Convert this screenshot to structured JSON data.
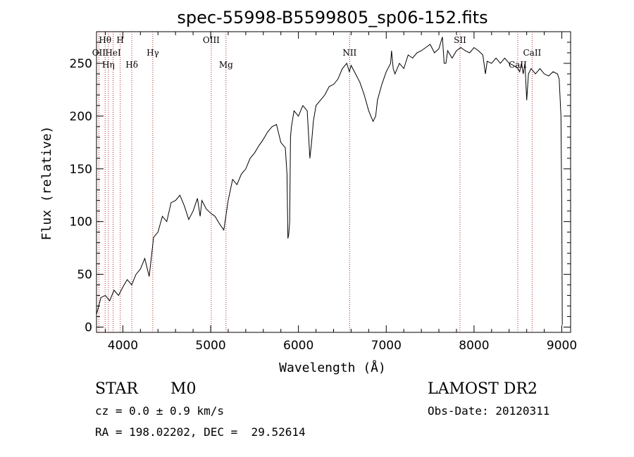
{
  "chart_data": {
    "type": "line",
    "title": "spec-55998-B5599805_sp06-152.fits",
    "xlabel": "Wavelength (Å)",
    "ylabel": "Flux (relative)",
    "xlim": [
      3700,
      9100
    ],
    "ylim": [
      -5,
      280
    ],
    "xticks": [
      4000,
      5000,
      6000,
      7000,
      8000,
      9000
    ],
    "yticks": [
      0,
      50,
      100,
      150,
      200,
      250
    ],
    "grid": false,
    "series": [
      {
        "x": [
          3700,
          3750,
          3800,
          3850,
          3900,
          3950,
          4000,
          4050,
          4100,
          4150,
          4200,
          4250,
          4300,
          4350,
          4400,
          4450,
          4500,
          4550,
          4600,
          4650,
          4700,
          4750,
          4800,
          4850,
          4880,
          4900,
          4950,
          5000,
          5050,
          5100,
          5150,
          5200,
          5250,
          5300,
          5350,
          5400,
          5450,
          5500,
          5550,
          5600,
          5650,
          5700,
          5750,
          5800,
          5850,
          5870,
          5880,
          5890,
          5900,
          5910,
          5920,
          5950,
          6000,
          6050,
          6100,
          6130,
          6150,
          6160,
          6170,
          6200,
          6250,
          6300,
          6350,
          6400,
          6450,
          6500,
          6550,
          6580,
          6600,
          6650,
          6700,
          6750,
          6800,
          6850,
          6880,
          6900,
          6950,
          7000,
          7050,
          7060,
          7080,
          7100,
          7150,
          7200,
          7250,
          7300,
          7350,
          7400,
          7450,
          7500,
          7550,
          7600,
          7640,
          7660,
          7680,
          7700,
          7750,
          7800,
          7850,
          7900,
          7950,
          8000,
          8050,
          8100,
          8130,
          8150,
          8200,
          8250,
          8300,
          8350,
          8400,
          8450,
          8500,
          8520,
          8540,
          8560,
          8580,
          8600,
          8620,
          8650,
          8680,
          8700,
          8750,
          8800,
          8850,
          8900,
          8950,
          8970,
          8990,
          9000,
          9005
        ],
        "y": [
          12,
          28,
          30,
          25,
          35,
          30,
          38,
          45,
          40,
          50,
          55,
          65,
          48,
          85,
          90,
          105,
          100,
          118,
          120,
          125,
          115,
          102,
          110,
          122,
          105,
          120,
          112,
          108,
          105,
          98,
          92,
          120,
          140,
          135,
          145,
          150,
          160,
          165,
          172,
          178,
          185,
          190,
          192,
          175,
          170,
          145,
          84,
          88,
          100,
          180,
          190,
          205,
          200,
          210,
          205,
          160,
          175,
          185,
          195,
          210,
          215,
          220,
          228,
          230,
          235,
          245,
          250,
          242,
          248,
          240,
          232,
          220,
          205,
          195,
          200,
          215,
          230,
          242,
          250,
          262,
          245,
          240,
          250,
          245,
          258,
          255,
          260,
          262,
          265,
          268,
          260,
          264,
          275,
          250,
          250,
          262,
          255,
          262,
          265,
          262,
          260,
          265,
          262,
          258,
          240,
          252,
          250,
          255,
          250,
          255,
          250,
          248,
          245,
          242,
          250,
          240,
          250,
          215,
          240,
          245,
          242,
          240,
          245,
          240,
          238,
          242,
          240,
          235,
          200,
          110,
          2
        ]
      }
    ],
    "lines": [
      {
        "label": "Hθ",
        "wl": 3798
      },
      {
        "label": "OII",
        "wl": 3727
      },
      {
        "label": "Hη",
        "wl": 3835
      },
      {
        "label": "HeI",
        "wl": 3889
      },
      {
        "label": "H",
        "wl": 3970
      },
      {
        "label": "Hδ",
        "wl": 4102
      },
      {
        "label": "Hγ",
        "wl": 4341
      },
      {
        "label": "OIII",
        "wl": 5007
      },
      {
        "label": "Mg",
        "wl": 5175
      },
      {
        "label": "NII",
        "wl": 6583
      },
      {
        "label": "SII",
        "wl": 7840
      },
      {
        "label": "CaII",
        "wl": 8498
      },
      {
        "label": "CaII",
        "wl": 8662
      }
    ]
  },
  "info": {
    "class": "STAR",
    "subclass": "M0",
    "survey": "LAMOST DR2",
    "cz": "cz = 0.0 ± 0.9 km/s",
    "obs_date": "Obs-Date: 20120311",
    "coords": "RA = 198.02202, DEC =  29.52614"
  }
}
